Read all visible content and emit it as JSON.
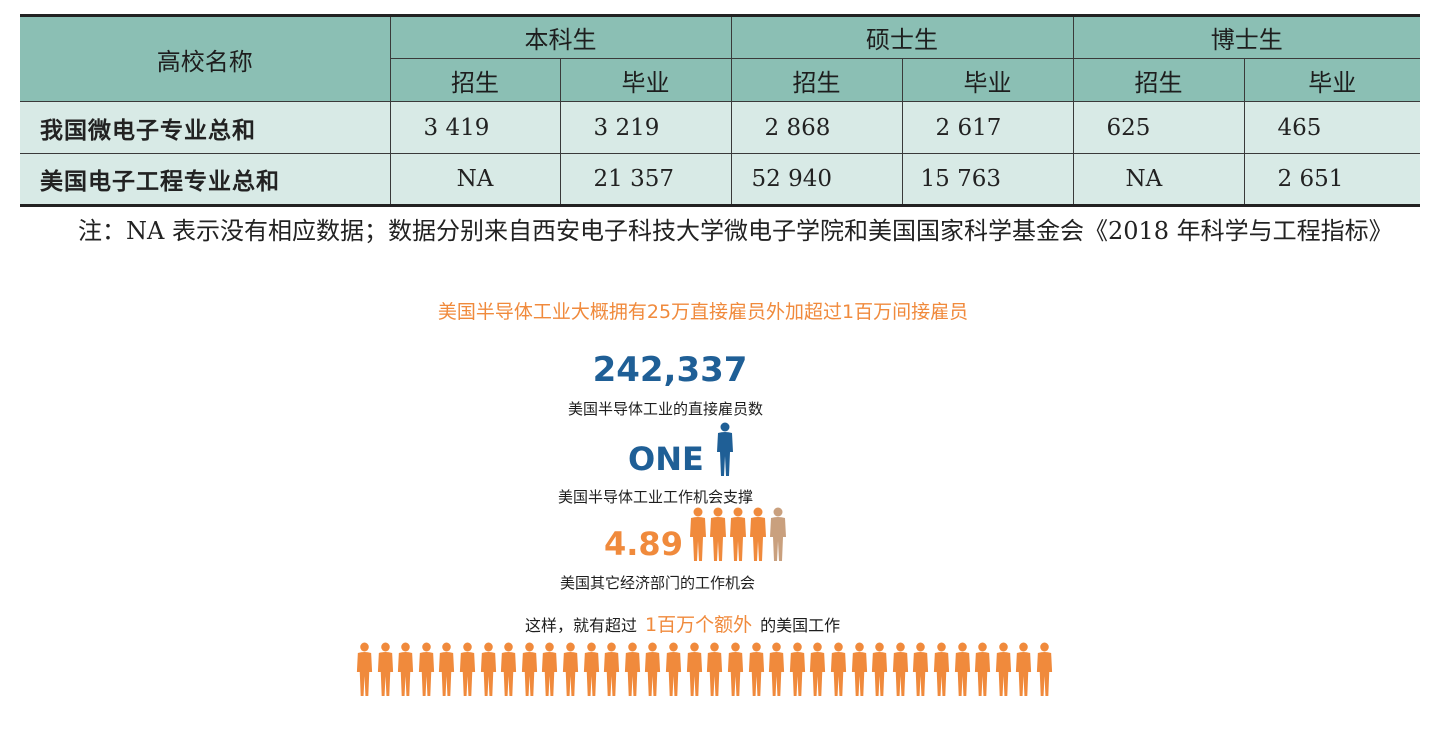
{
  "table": {
    "header_school": "高校名称",
    "groups": [
      "本科生",
      "硕士生",
      "博士生"
    ],
    "subheaders": [
      "招生",
      "毕业",
      "招生",
      "毕业",
      "招生",
      "毕业"
    ],
    "rows": [
      {
        "name": "我国微电子专业总和",
        "values": [
          "3 419",
          "3 219",
          "2 868",
          "2 617",
          "625",
          "465"
        ]
      },
      {
        "name": "美国电子工程专业总和",
        "values": [
          "NA",
          "21 357",
          "52 940",
          "15 763",
          "NA",
          "2 651"
        ]
      }
    ]
  },
  "note": "注：NA 表示没有相应数据；数据分别来自西安电子科技大学微电子学院和美国国家科学基金会《2018 年科学与工程指标》",
  "infographic": {
    "headline": "美国半导体工业大概拥有25万直接雇员外加超过1百万间接雇员",
    "direct_number": "242,337",
    "direct_caption": "美国半导体工业的直接雇员数",
    "one_label": "ONE",
    "support_caption": "美国半导体工业工作机会支撑",
    "ratio_number": "4.89",
    "other_caption": "美国其它经济部门的工作机会",
    "summary_prefix": "这样，就有超过",
    "summary_highlight": "1百万个额外",
    "summary_suffix": "的美国工作",
    "colors": {
      "blue": "#1f5f96",
      "orange": "#f08a3c",
      "partial_person": "#c9a07e"
    },
    "icons": {
      "single_person": "person-icon",
      "ratio_people": "people-group-icon",
      "job_row": "job-row-icon"
    }
  }
}
